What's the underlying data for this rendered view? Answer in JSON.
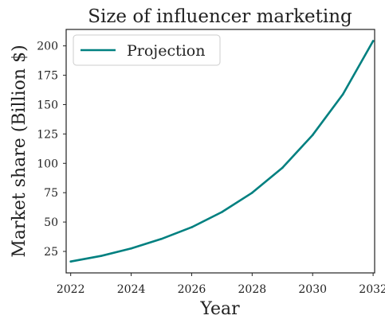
{
  "chart_data": {
    "type": "line",
    "title": "Size of influencer marketing",
    "xlabel": "Year",
    "ylabel": "Market share (Billion $)",
    "xlim": [
      2021.85,
      2032.05
    ],
    "ylim": [
      6.7,
      214
    ],
    "xticks": [
      2022,
      2024,
      2026,
      2028,
      2030,
      2032
    ],
    "yticks": [
      25,
      50,
      75,
      100,
      125,
      150,
      175,
      200
    ],
    "grid": false,
    "legend_position": "top-left",
    "series": [
      {
        "name": "Projection",
        "color": "#008080",
        "x": [
          2022,
          2023,
          2024,
          2025,
          2026,
          2027,
          2028,
          2029,
          2030,
          2031,
          2032
        ],
        "y": [
          16.4,
          21.1,
          27.5,
          35.6,
          45.6,
          58.5,
          74.9,
          96.2,
          124.1,
          158.8,
          204.2
        ]
      }
    ]
  }
}
